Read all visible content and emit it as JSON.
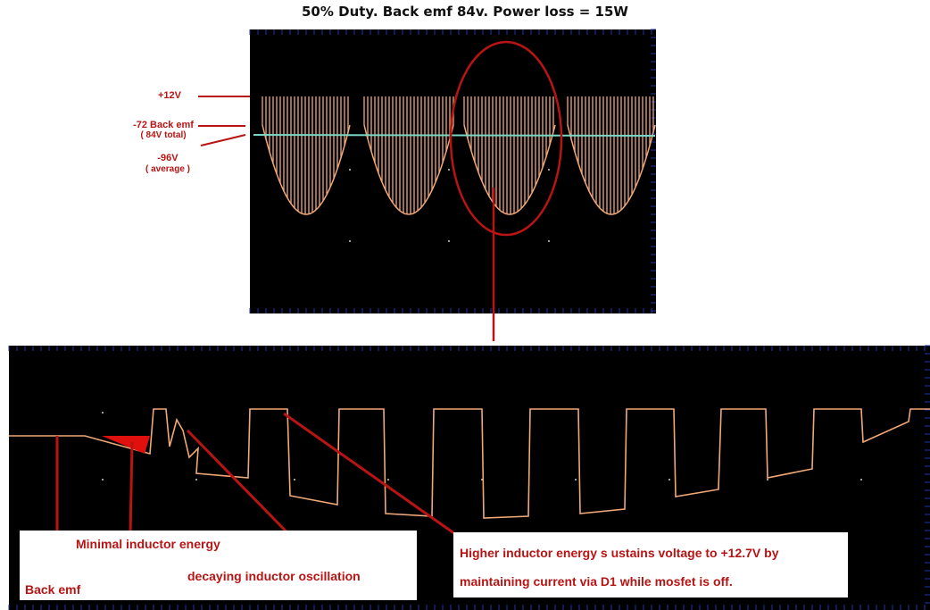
{
  "title": "50% Duty. Back emf 84v. Power loss = 15W",
  "colors": {
    "screen": "#000000",
    "trace": "#f0a878",
    "trace_bright": "#ffd2a8",
    "backemf_line": "#7ad6c6",
    "annotation": "#b81414",
    "grid_ticks": "#2233aa"
  },
  "top_labels": {
    "plus12": "+12V",
    "back_emf": "-72 Back emf",
    "back_emf_total": "( 84V total)",
    "minus96": "-96V",
    "average": "( average )"
  },
  "annotations": {
    "back_emf": "Back emf",
    "minimal": "Minimal inductor energy",
    "decaying": "decaying inductor oscillation",
    "higher_line1": "Higher inductor energy s ustains voltage to +12.7V by",
    "higher_line2": "maintaining current via D1 while mosfet is off."
  },
  "chart_data": [
    {
      "type": "line",
      "title": "50% Duty. Back emf 84v. Power loss = 15W",
      "series": [
        {
          "values": [
            12,
            -96,
            -72
          ]
        }
      ],
      "y_labels": [
        "+12V",
        "-72 Back emf",
        "-96V"
      ],
      "note": ""
    },
    {
      "type": "line",
      "title": "",
      "series": [
        {
          "values": [
            12.7
          ]
        }
      ]
    }
  ]
}
